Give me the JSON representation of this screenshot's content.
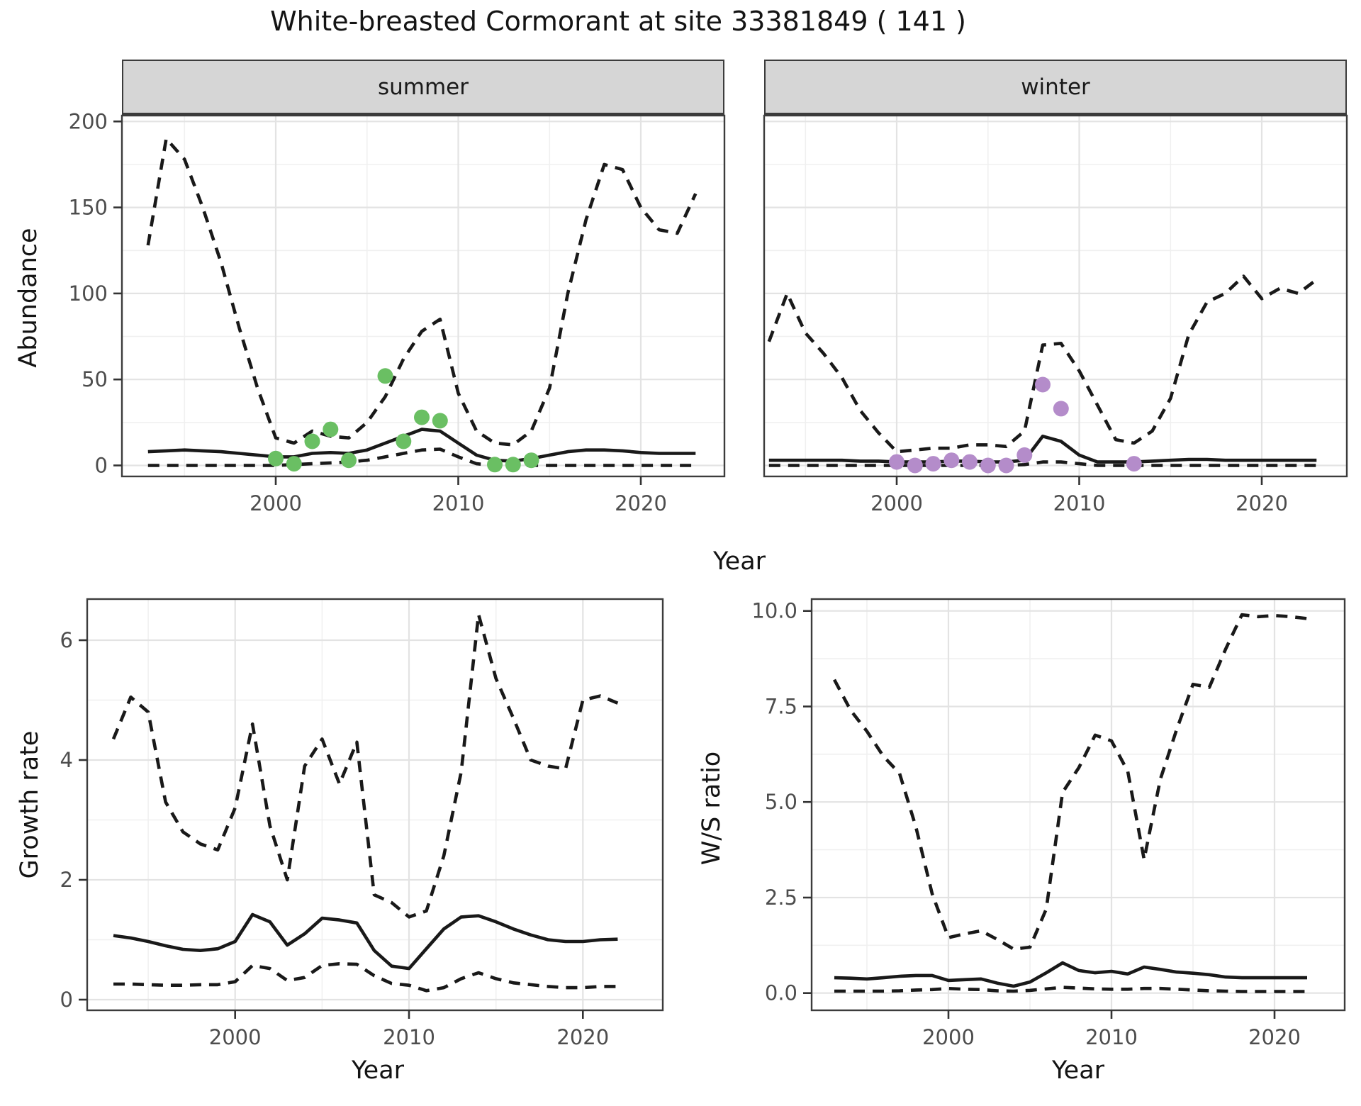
{
  "title": "White-breasted Cormorant at site 33381849 ( 141 )",
  "facets": {
    "summer": "summer",
    "winter": "winter"
  },
  "axis_titles": {
    "abundance": "Abundance",
    "year_top": "Year",
    "growth_rate": "Growth rate",
    "ws_ratio": "W/S ratio",
    "year_bottom_left": "Year",
    "year_bottom_right": "Year"
  },
  "colors": {
    "summer_points": "#6abf63",
    "winter_points": "#b48cca",
    "line": "#191919",
    "strip_bg": "#d6d6d6",
    "tick_text": "#4d4d4d"
  },
  "chart_data": [
    {
      "id": "summer",
      "type": "line",
      "facet_label": "summer",
      "ylabel": "Abundance",
      "xlabel": "Year",
      "x_range": [
        1991.6,
        2024.6
      ],
      "y_range": [
        -6,
        203
      ],
      "x_ticks": {
        "values": [
          2000,
          2010,
          2020
        ],
        "labels": [
          "2000",
          "2010",
          "2020"
        ]
      },
      "x_minor": [
        1995,
        2005,
        2015
      ],
      "y_ticks": {
        "values": [
          0,
          50,
          100,
          150,
          200
        ],
        "labels": [
          "0",
          "50",
          "100",
          "150",
          "200"
        ]
      },
      "y_minor": [
        25,
        75,
        125,
        175
      ],
      "series": [
        {
          "name": "upper_ci",
          "line": "dashed",
          "years": [
            1993,
            1994,
            1995,
            1996,
            1997,
            1998,
            1999,
            2000,
            2001,
            2002,
            2003,
            2004,
            2005,
            2006,
            2007,
            2008,
            2009,
            2010,
            2011,
            2012,
            2013,
            2014,
            2015,
            2016,
            2017,
            2018,
            2019,
            2020,
            2021,
            2022,
            2023
          ],
          "values": [
            128,
            190,
            178,
            150,
            118,
            80,
            45,
            16,
            13,
            20,
            17,
            16,
            25,
            40,
            62,
            78,
            85,
            42,
            20,
            13,
            12,
            20,
            45,
            100,
            143,
            175,
            172,
            150,
            137,
            135,
            158
          ]
        },
        {
          "name": "mean",
          "line": "solid",
          "years": [
            1993,
            1994,
            1995,
            1996,
            1997,
            1998,
            1999,
            2000,
            2001,
            2002,
            2003,
            2004,
            2005,
            2006,
            2007,
            2008,
            2009,
            2010,
            2011,
            2012,
            2013,
            2014,
            2015,
            2016,
            2017,
            2018,
            2019,
            2020,
            2021,
            2022,
            2023
          ],
          "values": [
            8,
            8.5,
            9,
            8.5,
            8,
            7,
            6,
            5,
            5,
            7,
            7.5,
            7,
            9,
            13,
            17,
            21,
            20,
            13,
            6,
            3,
            2.5,
            4,
            6,
            8,
            9,
            9,
            8.5,
            7.5,
            7,
            7,
            7
          ]
        },
        {
          "name": "lower_ci",
          "line": "dashed",
          "years": [
            1993,
            1994,
            1995,
            1996,
            1997,
            1998,
            1999,
            2000,
            2001,
            2002,
            2003,
            2004,
            2005,
            2006,
            2007,
            2008,
            2009,
            2010,
            2011,
            2012,
            2013,
            2014,
            2015,
            2016,
            2017,
            2018,
            2019,
            2020,
            2021,
            2022,
            2023
          ],
          "values": [
            0,
            0,
            0,
            0,
            0,
            0,
            0,
            0,
            0.5,
            1,
            1.5,
            2,
            3,
            5,
            7,
            9,
            9.5,
            5,
            1,
            0,
            0,
            0,
            0,
            0,
            0,
            0,
            0,
            0,
            0,
            0,
            0
          ]
        }
      ],
      "points": {
        "name": "observed-counts-summer",
        "color": "#6abf63",
        "data": [
          [
            2000,
            4
          ],
          [
            2001,
            1
          ],
          [
            2002,
            14
          ],
          [
            2003,
            21
          ],
          [
            2004,
            3
          ],
          [
            2006,
            52
          ],
          [
            2007,
            14
          ],
          [
            2008,
            28
          ],
          [
            2009,
            26
          ],
          [
            2012,
            0.5
          ],
          [
            2013,
            0.5
          ],
          [
            2014,
            3
          ]
        ]
      }
    },
    {
      "id": "winter",
      "type": "line",
      "facet_label": "winter",
      "ylabel": "Abundance",
      "xlabel": "Year",
      "x_range": [
        1992.7,
        2024.7
      ],
      "y_range": [
        -6,
        203
      ],
      "x_ticks": {
        "values": [
          2000,
          2010,
          2020
        ],
        "labels": [
          "2000",
          "2010",
          "2020"
        ]
      },
      "x_minor": [
        1995,
        2005,
        2015
      ],
      "y_ticks": {
        "values": [
          0,
          50,
          100,
          150,
          200
        ],
        "labels": [
          "0",
          "50",
          "100",
          "150",
          "200"
        ]
      },
      "y_minor": [
        25,
        75,
        125,
        175
      ],
      "series": [
        {
          "name": "upper_ci",
          "line": "dashed",
          "years": [
            1993,
            1994,
            1995,
            1996,
            1997,
            1998,
            1999,
            2000,
            2001,
            2002,
            2003,
            2004,
            2005,
            2006,
            2007,
            2008,
            2009,
            2010,
            2011,
            2012,
            2013,
            2014,
            2015,
            2016,
            2017,
            2018,
            2019,
            2020,
            2021,
            2022,
            2023
          ],
          "values": [
            72,
            100,
            77,
            65,
            51,
            32,
            19,
            8,
            9,
            10,
            10,
            12,
            12,
            11,
            20,
            70,
            71,
            55,
            35,
            15,
            13,
            20,
            39,
            76,
            95,
            100,
            110,
            97,
            103,
            100,
            108
          ]
        },
        {
          "name": "mean",
          "line": "solid",
          "years": [
            1993,
            1994,
            1995,
            1996,
            1997,
            1998,
            1999,
            2000,
            2001,
            2002,
            2003,
            2004,
            2005,
            2006,
            2007,
            2008,
            2009,
            2010,
            2011,
            2012,
            2013,
            2014,
            2015,
            2016,
            2017,
            2018,
            2019,
            2020,
            2021,
            2022,
            2023
          ],
          "values": [
            3,
            3,
            3,
            3,
            3,
            2.5,
            2.5,
            2,
            2,
            2,
            2.5,
            2.5,
            2,
            2,
            3,
            17,
            14,
            6,
            2,
            2,
            2,
            2.5,
            3,
            3.5,
            3.5,
            3,
            3,
            3,
            3,
            3,
            3
          ]
        },
        {
          "name": "lower_ci",
          "line": "dashed",
          "years": [
            1993,
            1994,
            1995,
            1996,
            1997,
            1998,
            1999,
            2000,
            2001,
            2002,
            2003,
            2004,
            2005,
            2006,
            2007,
            2008,
            2009,
            2010,
            2011,
            2012,
            2013,
            2014,
            2015,
            2016,
            2017,
            2018,
            2019,
            2020,
            2021,
            2022,
            2023
          ],
          "values": [
            0,
            0,
            0,
            0,
            0,
            0,
            0,
            0,
            0,
            0,
            0,
            0,
            0,
            0,
            0.5,
            2,
            2,
            1,
            0,
            0,
            0,
            0,
            0,
            0,
            0,
            0,
            0,
            0,
            0,
            0,
            0
          ]
        }
      ],
      "points": {
        "name": "observed-counts-winter",
        "color": "#b48cca",
        "data": [
          [
            2000,
            2
          ],
          [
            2001,
            0
          ],
          [
            2002,
            1
          ],
          [
            2003,
            3
          ],
          [
            2004,
            2
          ],
          [
            2005,
            0
          ],
          [
            2006,
            0
          ],
          [
            2007,
            6
          ],
          [
            2008,
            47
          ],
          [
            2009,
            33
          ],
          [
            2013,
            1
          ]
        ]
      }
    },
    {
      "id": "growth",
      "type": "line",
      "facet_label": "",
      "ylabel": "Growth rate",
      "xlabel": "Year",
      "x_range": [
        1991.5,
        2024.6
      ],
      "y_range": [
        -0.18,
        6.69
      ],
      "x_ticks": {
        "values": [
          2000,
          2010,
          2020
        ],
        "labels": [
          "2000",
          "2010",
          "2020"
        ]
      },
      "x_minor": [
        1995,
        2005,
        2015
      ],
      "y_ticks": {
        "values": [
          0,
          2,
          4,
          6
        ],
        "labels": [
          "0",
          "2",
          "4",
          "6"
        ]
      },
      "y_minor": [
        1,
        3,
        5
      ],
      "series": [
        {
          "name": "upper_ci",
          "line": "dashed",
          "years": [
            1993,
            1994,
            1995,
            1996,
            1997,
            1998,
            1999,
            2000,
            2001,
            2002,
            2003,
            2004,
            2005,
            2006,
            2007,
            2008,
            2009,
            2010,
            2011,
            2012,
            2013,
            2014,
            2015,
            2016,
            2017,
            2018,
            2019,
            2020,
            2021,
            2022
          ],
          "values": [
            4.35,
            5.05,
            4.8,
            3.3,
            2.8,
            2.6,
            2.5,
            3.2,
            4.6,
            2.9,
            2.0,
            3.9,
            4.35,
            3.6,
            4.3,
            1.75,
            1.62,
            1.38,
            1.48,
            2.4,
            3.8,
            6.43,
            5.36,
            4.7,
            4.0,
            3.9,
            3.85,
            5.0,
            5.07,
            4.95
          ]
        },
        {
          "name": "mean",
          "line": "solid",
          "years": [
            1993,
            1994,
            1995,
            1996,
            1997,
            1998,
            1999,
            2000,
            2001,
            2002,
            2003,
            2004,
            2005,
            2006,
            2007,
            2008,
            2009,
            2010,
            2011,
            2012,
            2013,
            2014,
            2015,
            2016,
            2017,
            2018,
            2019,
            2020,
            2021,
            2022
          ],
          "values": [
            1.07,
            1.03,
            0.97,
            0.9,
            0.84,
            0.82,
            0.85,
            0.97,
            1.42,
            1.3,
            0.91,
            1.1,
            1.36,
            1.33,
            1.28,
            0.82,
            0.56,
            0.52,
            0.85,
            1.18,
            1.38,
            1.4,
            1.3,
            1.18,
            1.08,
            1.0,
            0.97,
            0.97,
            1.0,
            1.01
          ]
        },
        {
          "name": "lower_ci",
          "line": "dashed",
          "years": [
            1993,
            1994,
            1995,
            1996,
            1997,
            1998,
            1999,
            2000,
            2001,
            2002,
            2003,
            2004,
            2005,
            2006,
            2007,
            2008,
            2009,
            2010,
            2011,
            2012,
            2013,
            2014,
            2015,
            2016,
            2017,
            2018,
            2019,
            2020,
            2021,
            2022
          ],
          "values": [
            0.26,
            0.26,
            0.25,
            0.24,
            0.24,
            0.25,
            0.25,
            0.3,
            0.57,
            0.52,
            0.32,
            0.37,
            0.57,
            0.6,
            0.59,
            0.4,
            0.27,
            0.24,
            0.15,
            0.2,
            0.35,
            0.45,
            0.35,
            0.28,
            0.25,
            0.22,
            0.2,
            0.2,
            0.22,
            0.22
          ]
        }
      ],
      "points": null
    },
    {
      "id": "ws",
      "type": "line",
      "facet_label": "",
      "ylabel": "W/S ratio",
      "xlabel": "Year",
      "x_range": [
        1991.6,
        2024.3
      ],
      "y_range": [
        -0.45,
        10.31
      ],
      "x_ticks": {
        "values": [
          2000,
          2010,
          2020
        ],
        "labels": [
          "2000",
          "2010",
          "2020"
        ]
      },
      "x_minor": [
        1995,
        2005,
        2015
      ],
      "y_ticks": {
        "values": [
          0,
          2.5,
          5,
          7.5,
          10
        ],
        "labels": [
          "0.0",
          "2.5",
          "5.0",
          "7.5",
          "10.0"
        ]
      },
      "y_minor": [
        1.25,
        3.75,
        6.25,
        8.75
      ],
      "series": [
        {
          "name": "upper_ci",
          "line": "dashed",
          "years": [
            1993,
            1994,
            1995,
            1996,
            1997,
            1998,
            1999,
            2000,
            2001,
            2002,
            2003,
            2004,
            2005,
            2006,
            2007,
            2008,
            2009,
            2010,
            2011,
            2012,
            2013,
            2014,
            2015,
            2016,
            2017,
            2018,
            2019,
            2020,
            2021,
            2022
          ],
          "values": [
            8.2,
            7.4,
            6.85,
            6.2,
            5.75,
            4.35,
            2.6,
            1.45,
            1.55,
            1.63,
            1.4,
            1.15,
            1.2,
            2.2,
            5.25,
            5.9,
            6.75,
            6.6,
            5.8,
            3.5,
            5.6,
            6.9,
            8.08,
            8.0,
            9.0,
            9.9,
            9.85,
            9.88,
            9.85,
            9.8
          ]
        },
        {
          "name": "mean",
          "line": "solid",
          "years": [
            1993,
            1994,
            1995,
            1996,
            1997,
            1998,
            1999,
            2000,
            2001,
            2002,
            2003,
            2004,
            2005,
            2006,
            2007,
            2008,
            2009,
            2010,
            2011,
            2012,
            2013,
            2014,
            2015,
            2016,
            2017,
            2018,
            2019,
            2020,
            2021,
            2022
          ],
          "values": [
            0.4,
            0.39,
            0.37,
            0.4,
            0.44,
            0.46,
            0.46,
            0.33,
            0.35,
            0.37,
            0.26,
            0.18,
            0.29,
            0.53,
            0.79,
            0.59,
            0.53,
            0.57,
            0.5,
            0.68,
            0.62,
            0.55,
            0.52,
            0.48,
            0.42,
            0.4,
            0.4,
            0.4,
            0.4,
            0.4
          ]
        },
        {
          "name": "lower_ci",
          "line": "dashed",
          "years": [
            1993,
            1994,
            1995,
            1996,
            1997,
            1998,
            1999,
            2000,
            2001,
            2002,
            2003,
            2004,
            2005,
            2006,
            2007,
            2008,
            2009,
            2010,
            2011,
            2012,
            2013,
            2014,
            2015,
            2016,
            2017,
            2018,
            2019,
            2020,
            2021,
            2022
          ],
          "values": [
            0.05,
            0.05,
            0.05,
            0.05,
            0.06,
            0.08,
            0.09,
            0.12,
            0.1,
            0.09,
            0.06,
            0.05,
            0.07,
            0.11,
            0.15,
            0.13,
            0.11,
            0.1,
            0.1,
            0.12,
            0.12,
            0.1,
            0.08,
            0.06,
            0.05,
            0.04,
            0.04,
            0.04,
            0.04,
            0.04
          ]
        }
      ],
      "points": null
    }
  ]
}
